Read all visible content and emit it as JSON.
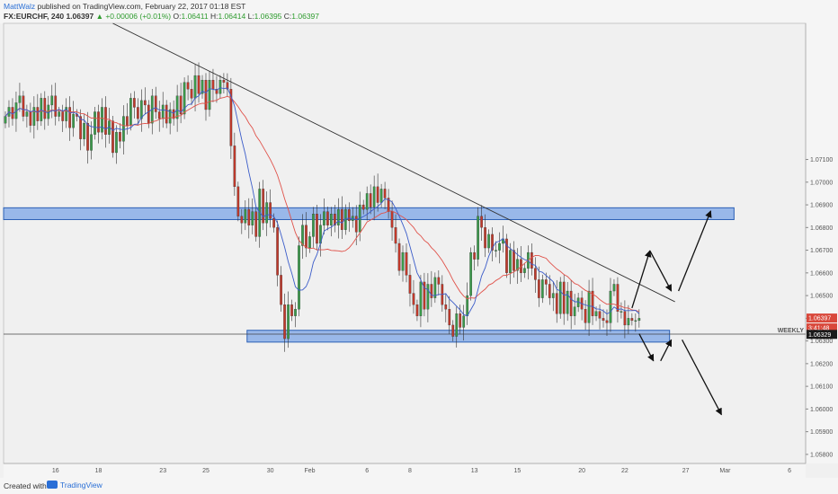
{
  "header": {
    "author": "MattWalz",
    "published": " published on TradingView.com, February 22, 2017 01:18 EST",
    "symbol": "FX:EURCHF, 240",
    "price": "1.06397",
    "change": "▲ +0.00006 (+0.01%)",
    "o_label": "O:",
    "o": "1.06411",
    "h_label": "H:",
    "h": "1.06414",
    "l_label": "L:",
    "l": "1.06395",
    "c_label": "C:",
    "c": "1.06397"
  },
  "footer": {
    "created": "Created with",
    "brand": "TradingView"
  },
  "colors": {
    "up_candle": "#3a9a4a",
    "down_candle": "#c0392b",
    "ma_red": "#e0524a",
    "ma_blue": "#3b5cc9",
    "zone_fill": "#8fb1e8",
    "zone_stroke": "#2b5fb5",
    "last_price_badge": "#d9483b",
    "level_badge": "#1a1a1a"
  },
  "chart_data": {
    "type": "candlestick",
    "symbol": "FX:EURCHF",
    "timeframe": "240",
    "ylim": [
      1.0576,
      1.077
    ],
    "y_ticks": [
      "1.07100",
      "1.07000",
      "1.06900",
      "1.06800",
      "1.06700",
      "1.06600",
      "1.06500",
      "1.06400",
      "1.06300",
      "1.06200",
      "1.06100",
      "1.06000",
      "1.05900",
      "1.05800"
    ],
    "y_tick_values": [
      1.071,
      1.07,
      1.069,
      1.068,
      1.067,
      1.066,
      1.065,
      1.064,
      1.063,
      1.062,
      1.061,
      1.06,
      1.059,
      1.058
    ],
    "x_ticks": [
      "16",
      "18",
      "23",
      "25",
      "30",
      "Feb",
      "6",
      "8",
      "13",
      "15",
      "20",
      "22",
      "27",
      "Mar",
      "6"
    ],
    "x_tick_index": [
      14,
      26,
      44,
      56,
      74,
      85,
      101,
      113,
      131,
      143,
      161,
      173,
      190,
      201,
      219
    ],
    "n_bars": 224,
    "last_price": "1.06397",
    "countdown": "3:41:48",
    "weekly_level": 1.0633,
    "weekly_label": "WEEKLY",
    "level_badge": "1.06329",
    "zones": [
      {
        "from_bar": 0,
        "to_bar": 204,
        "low": 1.06835,
        "high": 1.06887
      },
      {
        "from_bar": 68,
        "to_bar": 186,
        "low": 1.06295,
        "high": 1.06347
      }
    ],
    "trendline": [
      {
        "bar": 30,
        "price": 1.077
      },
      {
        "bar": 187,
        "price": 1.06473
      }
    ],
    "arrows": [
      {
        "from": [
          175,
          1.06445
        ],
        "to": [
          180,
          1.06698
        ]
      },
      {
        "from": [
          180,
          1.06698
        ],
        "to": [
          186,
          1.0652
        ]
      },
      {
        "from": [
          188,
          1.0652
        ],
        "to": [
          197,
          1.06873
        ]
      },
      {
        "from": [
          177,
          1.06332
        ],
        "to": [
          181,
          1.06212
        ]
      },
      {
        "from": [
          183,
          1.06212
        ],
        "to": [
          186,
          1.06305
        ]
      },
      {
        "from": [
          189,
          1.06305
        ],
        "to": [
          200,
          1.05975
        ]
      }
    ],
    "closes": [
      1.0729,
      1.0733,
      1.0728,
      1.0735,
      1.0738,
      1.0729,
      1.0731,
      1.0725,
      1.0733,
      1.0727,
      1.0737,
      1.0728,
      1.0734,
      1.0738,
      1.0729,
      1.0731,
      1.0727,
      1.0733,
      1.0724,
      1.073,
      1.0729,
      1.0719,
      1.0726,
      1.0714,
      1.0721,
      1.0731,
      1.0722,
      1.0733,
      1.0721,
      1.0727,
      1.0713,
      1.0722,
      1.0718,
      1.0729,
      1.0725,
      1.0737,
      1.0733,
      1.0728,
      1.0736,
      1.0734,
      1.0726,
      1.0738,
      1.0731,
      1.0728,
      1.0734,
      1.0726,
      1.0732,
      1.0728,
      1.0738,
      1.073,
      1.0744,
      1.0741,
      1.0737,
      1.0747,
      1.0739,
      1.0745,
      1.0732,
      1.0745,
      1.0741,
      1.0739,
      1.0745,
      1.0744,
      1.0741,
      1.0716,
      1.0698,
      1.0685,
      1.0682,
      1.0688,
      1.0681,
      1.0687,
      1.0676,
      1.0697,
      1.0682,
      1.0691,
      1.0684,
      1.068,
      1.0659,
      1.0646,
      1.0631,
      1.0646,
      1.0641,
      1.0644,
      1.0672,
      1.0681,
      1.0671,
      1.0676,
      1.0686,
      1.0673,
      1.0681,
      1.0687,
      1.0681,
      1.0686,
      1.0681,
      1.0688,
      1.0679,
      1.0688,
      1.0683,
      1.0685,
      1.0678,
      1.069,
      1.0688,
      1.0695,
      1.0689,
      1.0698,
      1.0691,
      1.0697,
      1.0693,
      1.0687,
      1.068,
      1.0673,
      1.0661,
      1.0669,
      1.0659,
      1.0651,
      1.0646,
      1.0641,
      1.0656,
      1.0644,
      1.0655,
      1.0649,
      1.0658,
      1.0655,
      1.0646,
      1.0644,
      1.0637,
      1.0632,
      1.0642,
      1.0636,
      1.0641,
      1.065,
      1.0669,
      1.0666,
      1.0685,
      1.068,
      1.0671,
      1.0677,
      1.067,
      1.067,
      1.0673,
      1.0675,
      1.066,
      1.067,
      1.0661,
      1.0666,
      1.066,
      1.0662,
      1.0669,
      1.0662,
      1.0657,
      1.0649,
      1.0657,
      1.0655,
      1.0649,
      1.0651,
      1.0642,
      1.0656,
      1.0642,
      1.0652,
      1.0641,
      1.0645,
      1.0649,
      1.0644,
      1.0638,
      1.0652,
      1.0641,
      1.0643,
      1.064,
      1.0639,
      1.0638,
      1.0652,
      1.0655,
      1.0643,
      1.0643,
      1.0637,
      1.064,
      1.0639,
      1.0639,
      1.064
    ]
  }
}
